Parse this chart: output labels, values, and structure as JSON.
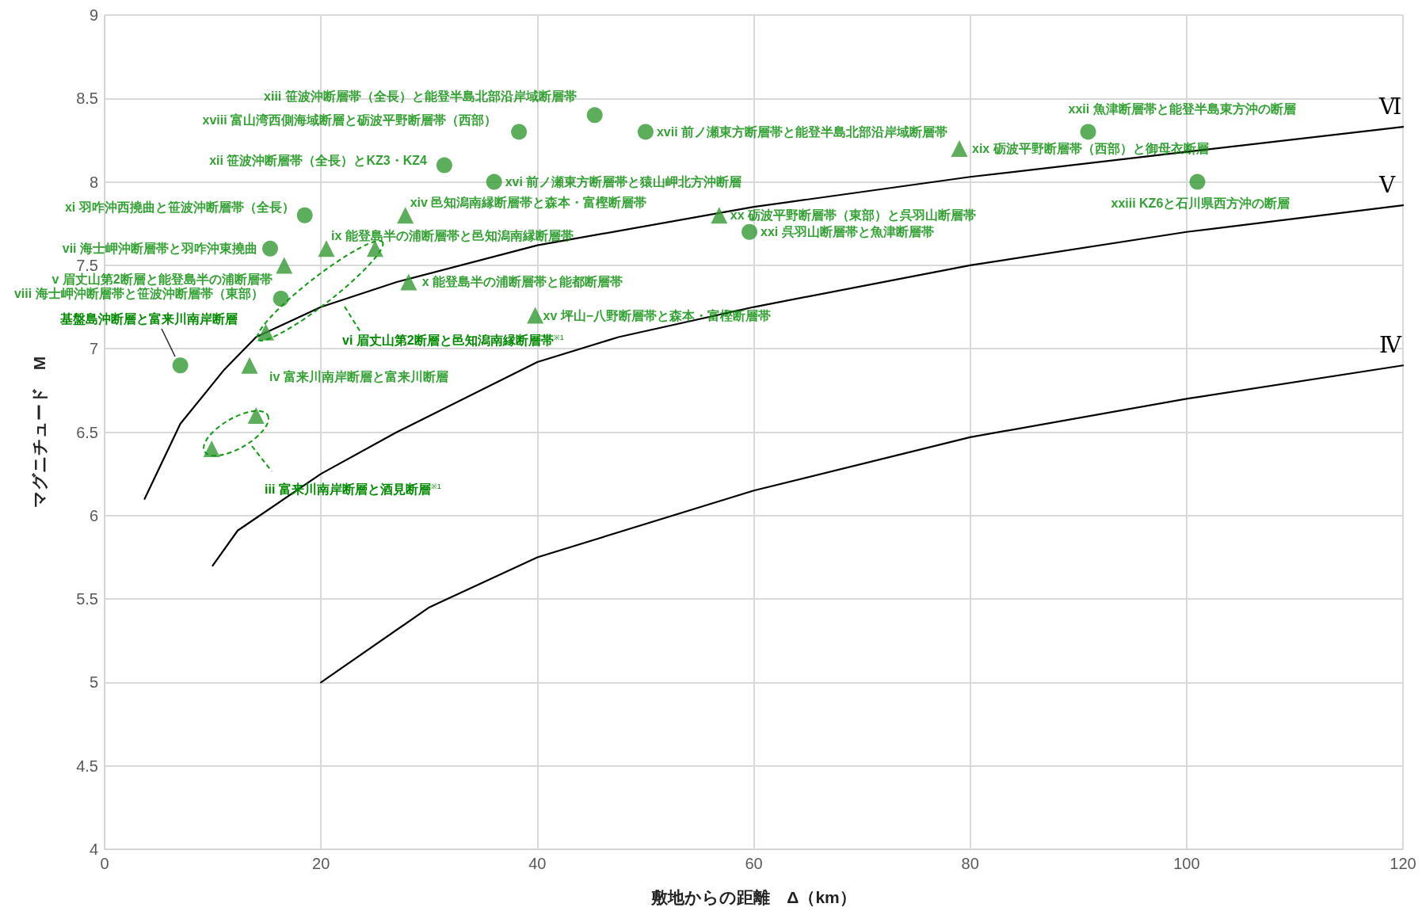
{
  "chart_data": {
    "type": "scatter",
    "xlabel": "敷地からの距離　Δ（km）",
    "ylabel": "マグニチュード　M",
    "xlim": [
      0,
      120
    ],
    "xticks": [
      0,
      20,
      40,
      60,
      80,
      100,
      120
    ],
    "ylim": [
      4,
      9
    ],
    "yticks": [
      4,
      4.5,
      5,
      5.5,
      6,
      6.5,
      7,
      7.5,
      8,
      8.5,
      9
    ],
    "grid": true,
    "legend": false,
    "series": [
      {
        "marker": "circle",
        "color": "#339933",
        "x": [
          7,
          16.3,
          15.3,
          18.5,
          31.4,
          38.3,
          45.3,
          36,
          50,
          59.6,
          90.9,
          101
        ],
        "values": [
          6.9,
          7.3,
          7.6,
          7.8,
          8.1,
          8.3,
          8.4,
          8,
          8.3,
          7.7,
          8.3,
          8
        ]
      },
      {
        "marker": "triangle",
        "color": "#339933",
        "x": [
          16.6,
          20.5,
          25,
          14.9,
          27.8,
          28.1,
          39.8,
          13.4,
          14,
          9.9,
          56.8,
          79
        ],
        "values": [
          7.5,
          7.6,
          7.6,
          7.1,
          7.8,
          7.4,
          7.2,
          6.9,
          6.6,
          6.4,
          7.8,
          8.2
        ]
      },
      {
        "type": "line",
        "name": "Ⅵ",
        "marker": "none",
        "line_style": "solid",
        "color": "#000000",
        "x": [
          3.7,
          7,
          11,
          14,
          20,
          27,
          40,
          60,
          80,
          100,
          120
        ],
        "values": [
          6.1,
          6.55,
          6.87,
          7.07,
          7.25,
          7.4,
          7.62,
          7.85,
          8.03,
          8.18,
          8.33
        ]
      },
      {
        "type": "line",
        "name": "Ⅴ",
        "marker": "none",
        "line_style": "solid",
        "color": "#000000",
        "x": [
          10,
          12.3,
          20,
          27,
          40,
          47.5,
          60,
          80,
          100,
          120
        ],
        "values": [
          5.7,
          5.91,
          6.25,
          6.5,
          6.92,
          7.07,
          7.25,
          7.5,
          7.7,
          7.86
        ]
      },
      {
        "type": "line",
        "name": "Ⅳ",
        "marker": "none",
        "line_style": "solid",
        "color": "#000000",
        "x": [
          20,
          30,
          40,
          60,
          80,
          100,
          120
        ],
        "values": [
          5,
          5.45,
          5.75,
          6.15,
          6.47,
          6.7,
          6.9
        ]
      }
    ],
    "annotations": [
      {
        "text": "xiii 笹波沖断層帯（全長）と能登半島北部沿岸域断層帯",
        "x": 45.3,
        "y": 8.4
      },
      {
        "text": "xviii 富山湾西側海域断層と砺波平野断層帯（西部）",
        "x": 38.3,
        "y": 8.3
      },
      {
        "text": "xii 笹波沖断層帯（全長）とKZ3・KZ4",
        "x": 31.4,
        "y": 8.1
      },
      {
        "text": "xvi 前ノ瀬東方断層帯と猿山岬北方沖断層",
        "x": 36,
        "y": 8
      },
      {
        "text": "xvii 前ノ瀬東方断層帯と能登半島北部沿岸域断層帯",
        "x": 50,
        "y": 8.3
      },
      {
        "text": "xiv 邑知潟南縁断層帯と森本・富樫断層帯",
        "x": 27.8,
        "y": 7.8
      },
      {
        "text": "xi 羽咋沖西撓曲と笹波沖断層帯（全長）",
        "x": 18.5,
        "y": 7.8
      },
      {
        "text": "ix 能登島半の浦断層帯と邑知潟南縁断層帯",
        "x": 20.5,
        "y": 7.6
      },
      {
        "text": "vii 海士岬沖断層帯と羽咋沖東撓曲",
        "x": 15.3,
        "y": 7.6
      },
      {
        "text": "v 眉丈山第2断層と能登島半の浦断層帯",
        "x": 16.6,
        "y": 7.5
      },
      {
        "text": "viii 海士岬沖断層帯と笹波沖断層帯（東部）",
        "x": 16.3,
        "y": 7.3
      },
      {
        "text": "x 能登島半の浦断層帯と能都断層帯",
        "x": 28.1,
        "y": 7.4
      },
      "基盤島沖断層と富来川南岸断層",
      "vi 眉丈山第2断層と邑知潟南縁断層帯$^{※1}$",
      {
        "text": "xv 坪山−八野断層帯と森本・富樫断層帯",
        "x": 39.8,
        "y": 7.2
      },
      {
        "text": "iv 富来川南岸断層と富来川断層",
        "x": 13.4,
        "y": 6.9
      },
      "iii 富来川南岸断層と酒見断層$^{※1}$",
      {
        "text": "xx 砺波平野断層帯（東部）と呉羽山断層帯",
        "x": 56.8,
        "y": 7.8
      },
      {
        "text": "xxi 呉羽山断層帯と魚津断層帯",
        "x": 59.6,
        "y": 7.7
      },
      {
        "text": "xxii 魚津断層帯と能登半島東方沖の断層",
        "x": 90.9,
        "y": 8.3
      },
      {
        "text": "xix 砺波平野断層帯（西部）と御母衣断層",
        "x": 79,
        "y": 8.2
      },
      {
        "text": "xxiii KZ6と石川県西方沖の断層",
        "x": 101,
        "y": 8
      }
    ]
  }
}
